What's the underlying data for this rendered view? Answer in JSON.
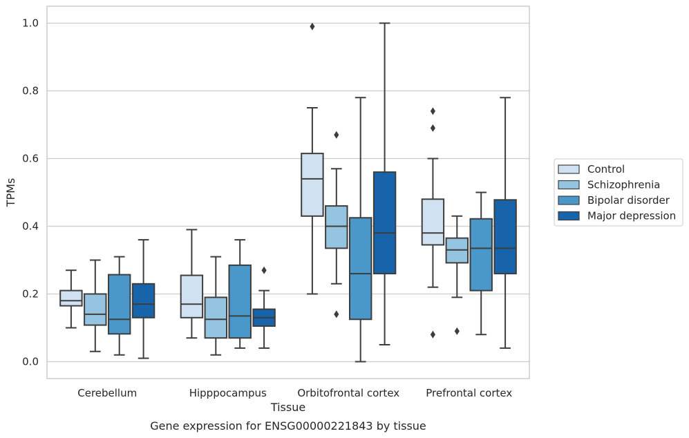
{
  "chart_data": {
    "type": "box",
    "caption": "Gene expression for ENSG00000221843 by tissue",
    "xlabel": "Tissue",
    "ylabel": "TPMs",
    "ylim": [
      -0.05,
      1.05
    ],
    "yticks": [
      "0.0",
      "0.2",
      "0.4",
      "0.6",
      "0.8",
      "1.0"
    ],
    "grid": "horizontal",
    "legend_position": "right",
    "categories": [
      "Cerebellum",
      "Hipppocampus",
      "Orbitofrontal cortex",
      "Prefrontal cortex"
    ],
    "series": [
      {
        "name": "Control",
        "color": "#d0e1f2",
        "boxes": [
          {
            "whislo": 0.1,
            "q1": 0.165,
            "med": 0.18,
            "q3": 0.21,
            "whishi": 0.27,
            "fliers": []
          },
          {
            "whislo": 0.07,
            "q1": 0.13,
            "med": 0.17,
            "q3": 0.255,
            "whishi": 0.39,
            "fliers": []
          },
          {
            "whislo": 0.2,
            "q1": 0.43,
            "med": 0.54,
            "q3": 0.615,
            "whishi": 0.75,
            "fliers": [
              0.99
            ]
          },
          {
            "whislo": 0.22,
            "q1": 0.345,
            "med": 0.38,
            "q3": 0.48,
            "whishi": 0.6,
            "fliers": [
              0.69,
              0.74,
              0.08
            ]
          }
        ]
      },
      {
        "name": "Schizophrenia",
        "color": "#94c4df",
        "boxes": [
          {
            "whislo": 0.03,
            "q1": 0.108,
            "med": 0.14,
            "q3": 0.2,
            "whishi": 0.3,
            "fliers": []
          },
          {
            "whislo": 0.02,
            "q1": 0.07,
            "med": 0.125,
            "q3": 0.19,
            "whishi": 0.31,
            "fliers": []
          },
          {
            "whislo": 0.23,
            "q1": 0.335,
            "med": 0.4,
            "q3": 0.46,
            "whishi": 0.57,
            "fliers": [
              0.67,
              0.14
            ]
          },
          {
            "whislo": 0.19,
            "q1": 0.292,
            "med": 0.33,
            "q3": 0.365,
            "whishi": 0.43,
            "fliers": [
              0.09
            ]
          }
        ]
      },
      {
        "name": "Bipolar disorder",
        "color": "#4a98c9",
        "boxes": [
          {
            "whislo": 0.02,
            "q1": 0.082,
            "med": 0.125,
            "q3": 0.257,
            "whishi": 0.31,
            "fliers": []
          },
          {
            "whislo": 0.04,
            "q1": 0.07,
            "med": 0.135,
            "q3": 0.285,
            "whishi": 0.36,
            "fliers": []
          },
          {
            "whislo": 0.0,
            "q1": 0.125,
            "med": 0.26,
            "q3": 0.425,
            "whishi": 0.78,
            "fliers": []
          },
          {
            "whislo": 0.08,
            "q1": 0.21,
            "med": 0.335,
            "q3": 0.422,
            "whishi": 0.5,
            "fliers": []
          }
        ]
      },
      {
        "name": "Major depression",
        "color": "#1764ab",
        "boxes": [
          {
            "whislo": 0.01,
            "q1": 0.13,
            "med": 0.17,
            "q3": 0.23,
            "whishi": 0.36,
            "fliers": []
          },
          {
            "whislo": 0.04,
            "q1": 0.105,
            "med": 0.13,
            "q3": 0.155,
            "whishi": 0.21,
            "fliers": [
              0.27
            ]
          },
          {
            "whislo": 0.05,
            "q1": 0.26,
            "med": 0.38,
            "q3": 0.56,
            "whishi": 1.0,
            "fliers": []
          },
          {
            "whislo": 0.04,
            "q1": 0.26,
            "med": 0.335,
            "q3": 0.478,
            "whishi": 0.78,
            "fliers": []
          }
        ]
      }
    ]
  }
}
